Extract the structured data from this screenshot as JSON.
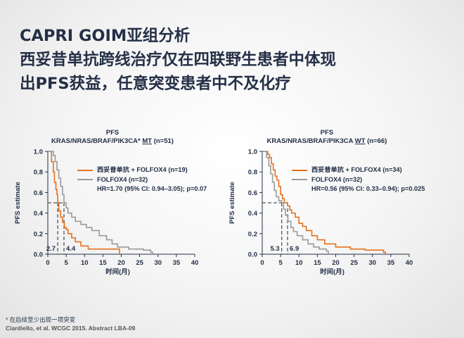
{
  "title_lines": [
    "CAPRI GOIM亚组分析",
    "西妥昔单抗跨线治疗仅在四联野生患者中体现",
    "出PFS获益，任意突变患者中不及化疗"
  ],
  "colors": {
    "orange": "#E8701E",
    "gray": "#9a9a9a",
    "text": "#243047"
  },
  "chart_data": [
    {
      "type": "line",
      "title": "PFS",
      "subtitle_prefix": "KRAS/NRAS/BRAF/PIK3CA* ",
      "subtitle_underline": "MT",
      "subtitle_suffix": " (n=51)",
      "ylabel": "PFS estimate",
      "xlabel": "时间(月)",
      "xlim": [
        0,
        40
      ],
      "ylim": [
        0,
        1.0
      ],
      "xticks": [
        "0",
        "5",
        "10",
        "15",
        "20",
        "25",
        "30",
        "35",
        "40"
      ],
      "yticks": [
        "0.0",
        "0.2",
        "0.4",
        "0.6",
        "0.8",
        "1.0"
      ],
      "series": [
        {
          "name": "西妥昔单抗 + FOLFOX4 (n=19)",
          "color": "#E8701E",
          "points": [
            [
              0,
              1.0
            ],
            [
              0.8,
              1.0
            ],
            [
              1,
              0.9
            ],
            [
              1.5,
              0.8
            ],
            [
              1.8,
              0.7
            ],
            [
              2.2,
              0.63
            ],
            [
              2.5,
              0.58
            ],
            [
              2.7,
              0.5
            ],
            [
              3.0,
              0.42
            ],
            [
              3.5,
              0.36
            ],
            [
              4.0,
              0.31
            ],
            [
              4.5,
              0.26
            ],
            [
              5.0,
              0.24
            ],
            [
              5.5,
              0.2
            ],
            [
              6.5,
              0.16
            ],
            [
              7.5,
              0.12
            ],
            [
              9.0,
              0.08
            ],
            [
              11.0,
              0.05
            ],
            [
              19.0,
              0.05
            ],
            [
              19.5,
              0.0
            ]
          ]
        },
        {
          "name": "FOLFOX4 (n=32)",
          "color": "#9a9a9a",
          "points": [
            [
              0,
              1.0
            ],
            [
              1.2,
              1.0
            ],
            [
              1.5,
              0.96
            ],
            [
              2.0,
              0.9
            ],
            [
              2.5,
              0.82
            ],
            [
              3.0,
              0.74
            ],
            [
              3.5,
              0.66
            ],
            [
              4.0,
              0.58
            ],
            [
              4.4,
              0.5
            ],
            [
              5.0,
              0.45
            ],
            [
              5.5,
              0.4
            ],
            [
              6.5,
              0.36
            ],
            [
              7.5,
              0.32
            ],
            [
              9.0,
              0.29
            ],
            [
              10.5,
              0.26
            ],
            [
              12.0,
              0.23
            ],
            [
              14.0,
              0.18
            ],
            [
              16.0,
              0.14
            ],
            [
              17.5,
              0.1
            ],
            [
              19.0,
              0.07
            ],
            [
              22.0,
              0.05
            ],
            [
              26.0,
              0.04
            ],
            [
              28.0,
              0.02
            ],
            [
              28.5,
              0.0
            ]
          ]
        }
      ],
      "medians": [
        {
          "label": "2.7",
          "x": 2.7
        },
        {
          "label": "4.4",
          "x": 4.4
        }
      ],
      "hr_text": "HR=1.70 (95% CI: 0.94–3.05); p=0.07"
    },
    {
      "type": "line",
      "title": "PFS",
      "subtitle_prefix": "KRAS/NRAS/BRAF/PIK3CA ",
      "subtitle_underline": "WT",
      "subtitle_suffix": " (n=66)",
      "ylabel": "PFS estimate",
      "xlabel": "时间(月)",
      "xlim": [
        0,
        40
      ],
      "ylim": [
        0,
        1.0
      ],
      "xticks": [
        "0",
        "5",
        "10",
        "15",
        "20",
        "25",
        "30",
        "35",
        "40"
      ],
      "yticks": [
        "0.0",
        "0.2",
        "0.4",
        "0.6",
        "0.8",
        "1.0"
      ],
      "series": [
        {
          "name": "西妥昔单抗 + FOLFOX4 (n=34)",
          "color": "#E8701E",
          "points": [
            [
              0,
              1.0
            ],
            [
              1.0,
              1.0
            ],
            [
              1.5,
              0.97
            ],
            [
              2.0,
              0.94
            ],
            [
              2.5,
              0.88
            ],
            [
              3.0,
              0.82
            ],
            [
              3.5,
              0.76
            ],
            [
              4.0,
              0.72
            ],
            [
              4.5,
              0.66
            ],
            [
              5.0,
              0.58
            ],
            [
              5.5,
              0.54
            ],
            [
              6.0,
              0.5
            ],
            [
              6.9,
              0.47
            ],
            [
              7.5,
              0.43
            ],
            [
              8.0,
              0.4
            ],
            [
              9.0,
              0.36
            ],
            [
              10.0,
              0.3
            ],
            [
              11.0,
              0.27
            ],
            [
              12.0,
              0.23
            ],
            [
              13.5,
              0.18
            ],
            [
              15.0,
              0.14
            ],
            [
              17.0,
              0.1
            ],
            [
              20.0,
              0.07
            ],
            [
              24.0,
              0.05
            ],
            [
              28.0,
              0.04
            ],
            [
              33.0,
              0.02
            ],
            [
              33.5,
              0.0
            ]
          ]
        },
        {
          "name": "FOLFOX4 (n=32)",
          "color": "#9a9a9a",
          "points": [
            [
              0,
              1.0
            ],
            [
              0.8,
              1.0
            ],
            [
              1.2,
              0.94
            ],
            [
              1.8,
              0.86
            ],
            [
              2.3,
              0.78
            ],
            [
              2.8,
              0.7
            ],
            [
              3.3,
              0.62
            ],
            [
              3.8,
              0.56
            ],
            [
              4.5,
              0.52
            ],
            [
              5.3,
              0.5
            ],
            [
              5.8,
              0.44
            ],
            [
              6.3,
              0.38
            ],
            [
              7.0,
              0.32
            ],
            [
              7.8,
              0.26
            ],
            [
              8.5,
              0.22
            ],
            [
              9.5,
              0.18
            ],
            [
              11.0,
              0.14
            ],
            [
              12.5,
              0.1
            ],
            [
              14.0,
              0.07
            ],
            [
              15.5,
              0.05
            ],
            [
              17.5,
              0.03
            ],
            [
              18.0,
              0.0
            ]
          ]
        }
      ],
      "medians": [
        {
          "label": "5.3",
          "x": 5.3
        },
        {
          "label": "6.9",
          "x": 6.9
        }
      ],
      "hr_text": "HR=0.56 (95% CI: 0.33–0.94); p=0.025"
    }
  ],
  "footnote": {
    "line1": "* 在后续至少出现一项突变",
    "line2": "Ciardiello, et al. WCGC 2015. Abstract LBA-09"
  }
}
